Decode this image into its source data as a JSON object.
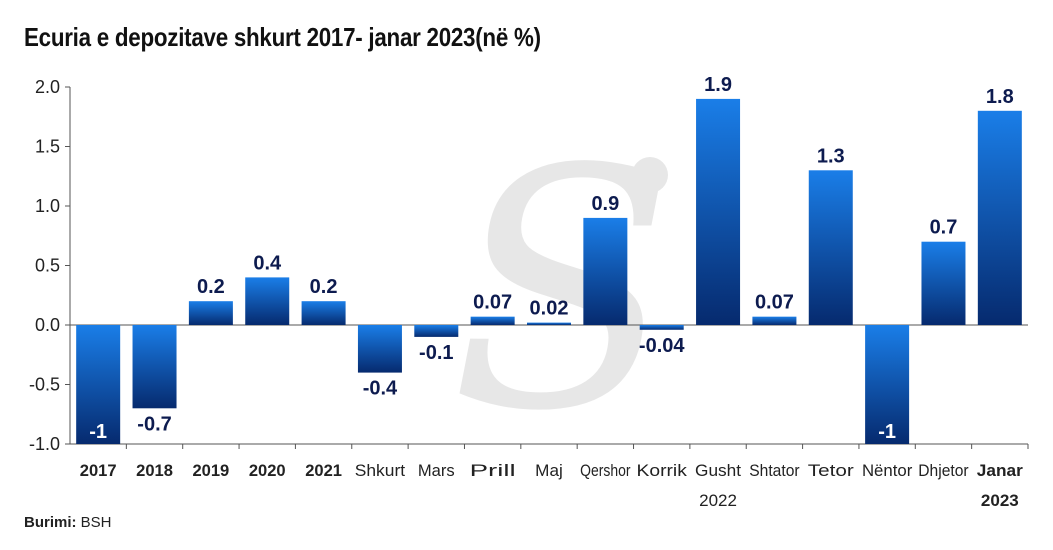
{
  "title": "Ecuria e depozitave shkurt 2017- janar 2023(në %)",
  "source": {
    "label": "Burimi:",
    "value": "BSH"
  },
  "chart_data": {
    "type": "bar",
    "categories": [
      "2017",
      "2018",
      "2019",
      "2020",
      "2021",
      "Shkurt",
      "Mars",
      "Prill",
      "Maj",
      "Qershor",
      "Korrik",
      "Gusht",
      "Shtator",
      "Tetor",
      "Nëntor",
      "Dhjetor",
      "Janar"
    ],
    "bold_categories": [
      "2017",
      "2018",
      "2019",
      "2020",
      "2021",
      "Janar"
    ],
    "values": [
      -1,
      -0.7,
      0.2,
      0.4,
      0.2,
      -0.4,
      -0.1,
      0.07,
      0.02,
      0.9,
      -0.04,
      1.9,
      0.07,
      1.3,
      -1,
      0.7,
      1.8
    ],
    "value_labels": [
      "-1",
      "-0.7",
      "0.2",
      "0.4",
      "0.2",
      "-0.4",
      "-0.1",
      "0.07",
      "0.02",
      "0.9",
      "-0.04",
      "1.9",
      "0.07",
      "1.3",
      "-1",
      "0.7",
      "1.8"
    ],
    "labels_inside_bar": [
      "2017",
      "Nëntor"
    ],
    "group_labels": [
      {
        "text": "2022",
        "after": "Gusht"
      },
      {
        "text": "2023",
        "after": "Janar",
        "bold": true
      }
    ],
    "yticks": [
      "2.0",
      "1.5",
      "1.0",
      "0.5",
      "0.0",
      "-0.5",
      "-1.0"
    ],
    "ylim": [
      -1.0,
      2.0
    ],
    "xlabel": "",
    "ylabel": "",
    "grid": false,
    "colors": {
      "bar_top": "#1a7ee8",
      "bar_bottom": "#062a6e",
      "label": "#0d1b4f"
    }
  }
}
